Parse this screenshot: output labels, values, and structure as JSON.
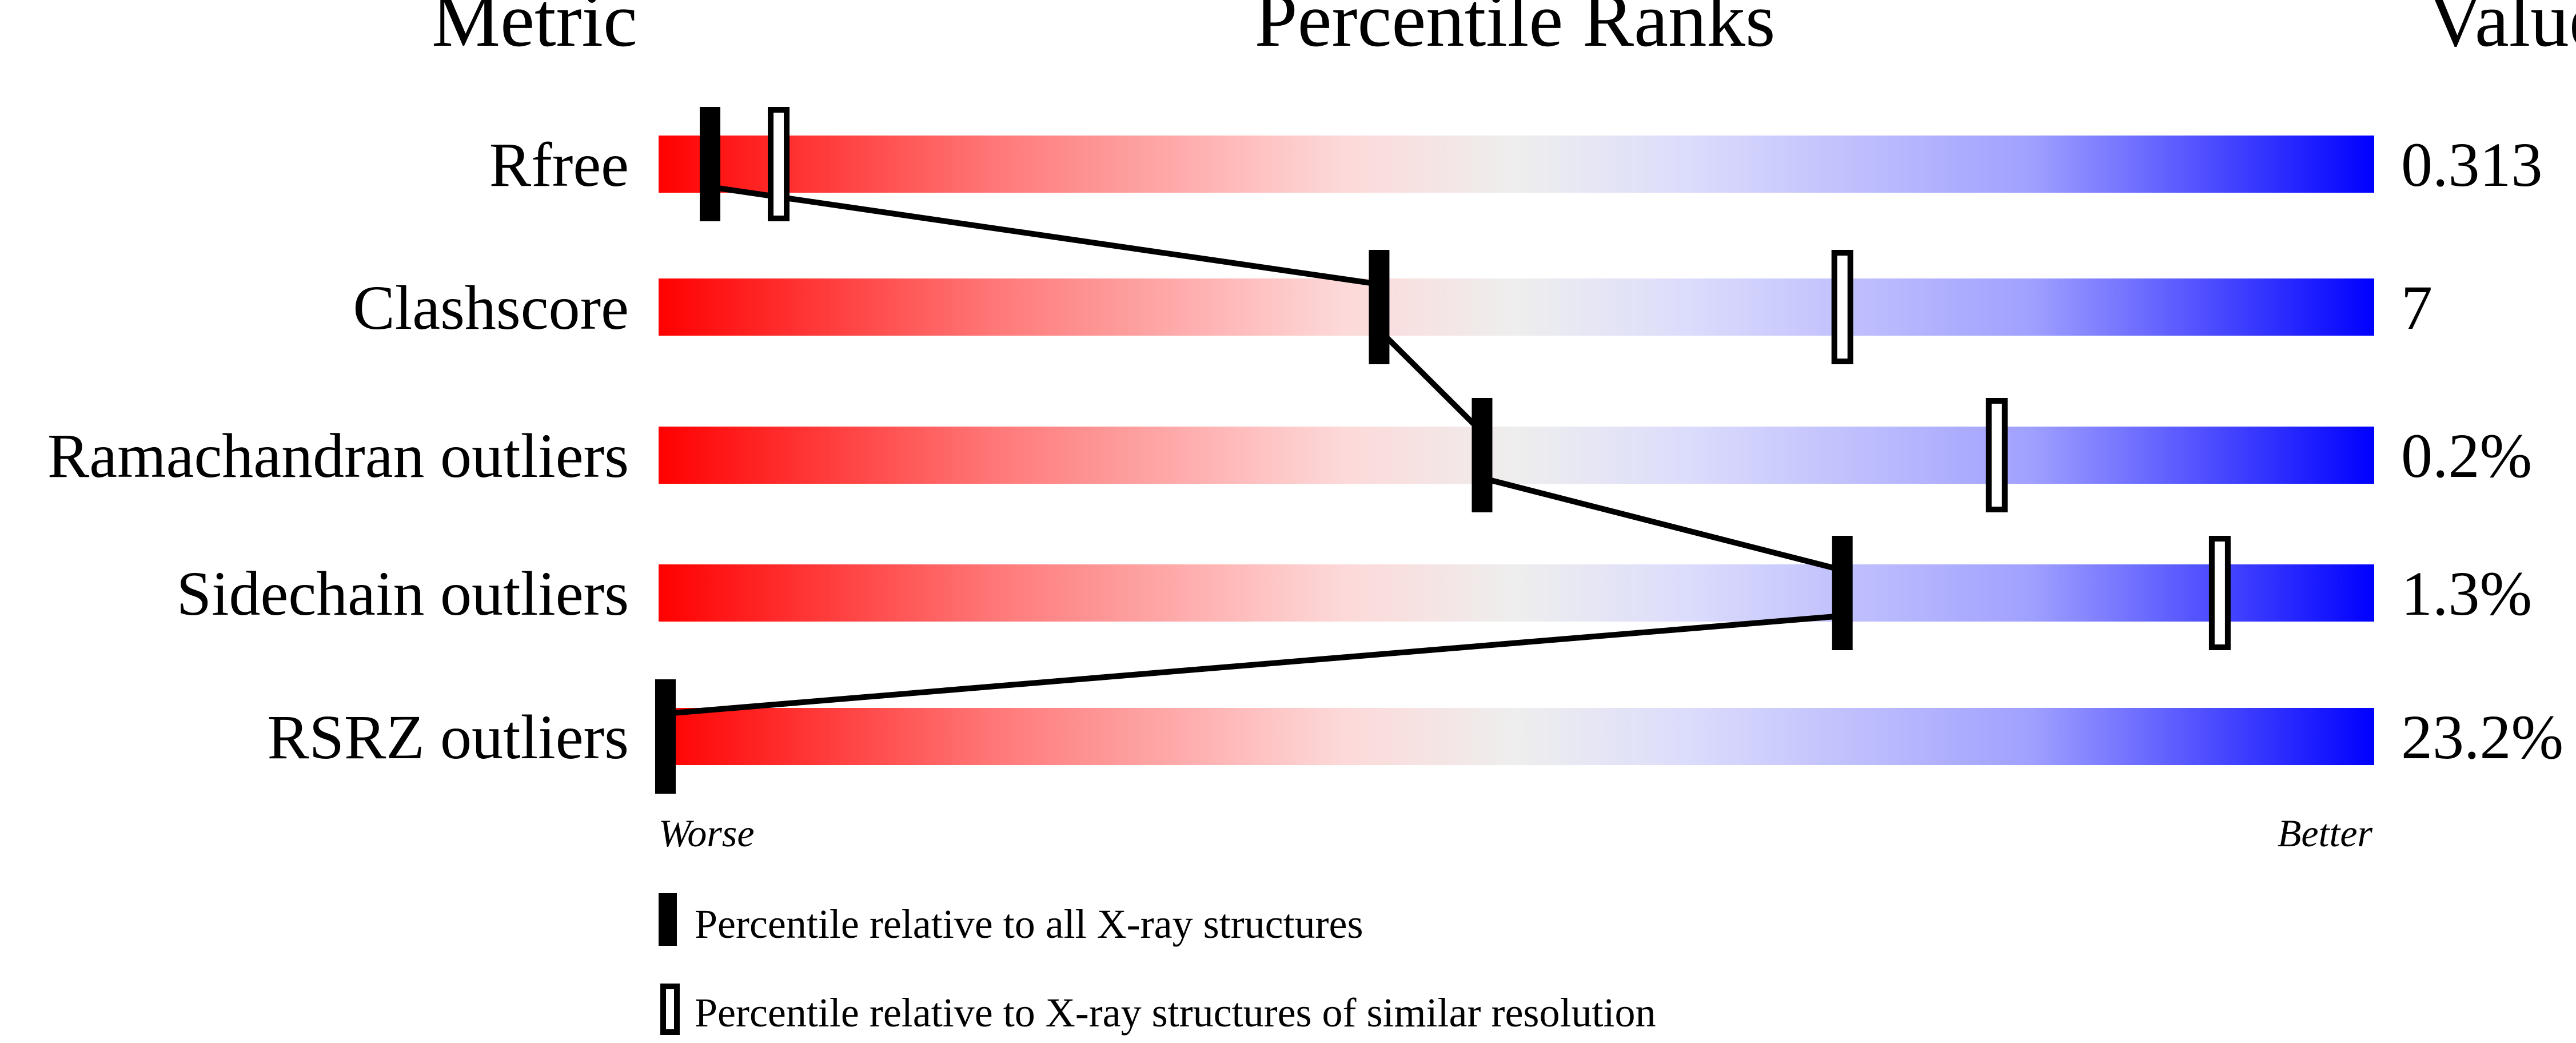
{
  "chart_data": {
    "type": "percentile-slider",
    "headers": {
      "metric": "Metric",
      "ranks": "Percentile Ranks",
      "value": "Value"
    },
    "xlim": [
      0,
      100
    ],
    "axis_labels": {
      "left": "Worse",
      "right": "Better"
    },
    "rows": [
      {
        "metric": "Rfree",
        "value": "0.313",
        "absolute_percentile": 3,
        "relative_percentile": 7
      },
      {
        "metric": "Clashscore",
        "value": "7",
        "absolute_percentile": 42,
        "relative_percentile": 69
      },
      {
        "metric": "Ramachandran outliers",
        "value": "0.2%",
        "absolute_percentile": 48,
        "relative_percentile": 78
      },
      {
        "metric": "Sidechain outliers",
        "value": "1.3%",
        "absolute_percentile": 69,
        "relative_percentile": 91
      },
      {
        "metric": "RSRZ outliers",
        "value": "23.2%",
        "absolute_percentile": 0,
        "relative_percentile": null
      }
    ],
    "legend": [
      {
        "marker": "filled",
        "label": "Percentile relative to all X-ray structures"
      },
      {
        "marker": "open",
        "label": "Percentile relative to X-ray structures of similar resolution"
      }
    ],
    "colors": {
      "worse": "#ff0000",
      "middle": "#eeeeee",
      "better": "#0000ff"
    }
  }
}
